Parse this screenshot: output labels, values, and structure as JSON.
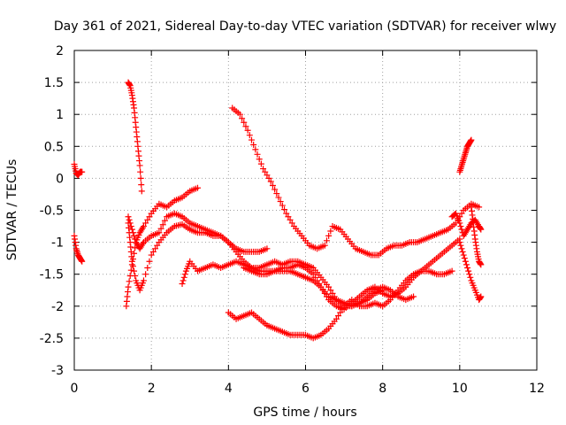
{
  "chart_data": {
    "type": "scatter",
    "title": "Day 361 of 2021, Sidereal Day-to-day VTEC variation (SDTVAR) for receiver wlwy",
    "xlabel": "GPS time / hours",
    "ylabel": "SDTVAR / TECUs",
    "xlim": [
      0,
      12
    ],
    "ylim": [
      -3,
      2
    ],
    "xticks": [
      0,
      2,
      4,
      6,
      8,
      10,
      12
    ],
    "xtick_labels": [
      "0",
      "2",
      "4",
      "6",
      "8",
      "10",
      "12"
    ],
    "yticks": [
      -3,
      -2.5,
      -2,
      -1.5,
      -1,
      -0.5,
      0,
      0.5,
      1,
      1.5,
      2
    ],
    "ytick_labels": [
      "-3",
      "-2.5",
      "-2",
      "-1.5",
      "-1",
      "-0.5",
      "0",
      "0.5",
      "1",
      "1.5",
      "2"
    ],
    "grid": true,
    "marker": "+",
    "color": "#ff0000",
    "series": [
      {
        "name": "s1",
        "x": [
          0.0,
          0.05,
          0.1,
          0.15,
          0.2
        ],
        "y": [
          0.22,
          0.08,
          0.05,
          0.1,
          0.1
        ]
      },
      {
        "name": "s2",
        "x": [
          0.0,
          0.05,
          0.1,
          0.15,
          0.2
        ],
        "y": [
          -0.9,
          -1.1,
          -1.2,
          -1.25,
          -1.3
        ]
      },
      {
        "name": "s3",
        "x": [
          1.4,
          1.45,
          1.5,
          1.55,
          1.6,
          1.65,
          1.7,
          1.75
        ],
        "y": [
          1.5,
          1.45,
          1.3,
          1.1,
          0.8,
          0.5,
          0.2,
          -0.2
        ]
      },
      {
        "name": "s4",
        "x": [
          1.35,
          1.4,
          1.5,
          1.6,
          1.7,
          1.8,
          2.0,
          2.2,
          2.4,
          2.6,
          2.8,
          3.0,
          3.2
        ],
        "y": [
          -2.0,
          -1.7,
          -1.35,
          -1.0,
          -0.85,
          -0.75,
          -0.55,
          -0.4,
          -0.45,
          -0.35,
          -0.3,
          -0.2,
          -0.15
        ]
      },
      {
        "name": "s5",
        "x": [
          1.4,
          1.45,
          1.5,
          1.6,
          1.7,
          1.8,
          2.0,
          2.2,
          2.4,
          2.6,
          2.8,
          3.0,
          3.2,
          3.4,
          3.6,
          3.8,
          4.0,
          4.2,
          4.4,
          4.6,
          4.8,
          5.0
        ],
        "y": [
          -0.7,
          -1.0,
          -1.3,
          -1.6,
          -1.75,
          -1.6,
          -1.2,
          -1.0,
          -0.85,
          -0.75,
          -0.72,
          -0.8,
          -0.85,
          -0.85,
          -0.9,
          -0.9,
          -1.0,
          -1.1,
          -1.15,
          -1.15,
          -1.15,
          -1.1
        ]
      },
      {
        "name": "s6",
        "x": [
          1.4,
          1.5,
          1.6,
          1.7,
          1.8,
          2.0,
          2.2,
          2.4,
          2.6,
          2.8,
          3.0,
          3.2,
          3.4,
          3.6,
          3.8,
          4.0,
          4.2,
          4.4,
          4.6,
          4.8,
          5.0,
          5.2,
          5.4,
          5.6,
          5.8,
          6.0,
          6.2,
          6.4,
          6.6,
          6.8,
          7.0,
          7.2,
          7.4,
          7.6,
          7.8,
          8.0
        ],
        "y": [
          -0.6,
          -0.8,
          -1.0,
          -1.1,
          -1.0,
          -0.9,
          -0.85,
          -0.6,
          -0.55,
          -0.6,
          -0.7,
          -0.75,
          -0.8,
          -0.85,
          -0.9,
          -1.0,
          -1.15,
          -1.3,
          -1.4,
          -1.45,
          -1.45,
          -1.45,
          -1.45,
          -1.45,
          -1.5,
          -1.55,
          -1.6,
          -1.7,
          -1.85,
          -1.9,
          -1.95,
          -2.0,
          -1.95,
          -1.9,
          -1.8,
          -1.75
        ]
      },
      {
        "name": "s7",
        "x": [
          2.8,
          2.9,
          3.0,
          3.2,
          3.4,
          3.6,
          3.8,
          4.0,
          4.2,
          4.4,
          4.6,
          4.8,
          5.0,
          5.2,
          5.4,
          5.6,
          5.8,
          6.0,
          6.2,
          6.4,
          6.6,
          6.8,
          7.0,
          7.2,
          7.4,
          7.6,
          7.8,
          8.0,
          8.2,
          8.4,
          8.6,
          8.8
        ],
        "y": [
          -1.65,
          -1.45,
          -1.3,
          -1.45,
          -1.4,
          -1.35,
          -1.4,
          -1.35,
          -1.3,
          -1.35,
          -1.4,
          -1.4,
          -1.35,
          -1.3,
          -1.35,
          -1.3,
          -1.3,
          -1.35,
          -1.4,
          -1.55,
          -1.7,
          -1.9,
          -2.0,
          -2.0,
          -1.95,
          -1.85,
          -1.75,
          -1.7,
          -1.75,
          -1.85,
          -1.9,
          -1.85
        ]
      },
      {
        "name": "s8",
        "x": [
          4.1,
          4.3,
          4.5,
          4.7,
          4.9,
          5.1,
          5.3,
          5.5,
          5.7,
          5.9,
          6.1,
          6.3,
          6.5,
          6.7,
          6.9,
          7.1,
          7.3,
          7.5,
          7.7,
          7.9,
          8.1,
          8.3,
          8.5,
          8.7,
          8.9,
          9.1,
          9.3,
          9.5,
          9.7,
          9.9,
          10.1,
          10.3,
          10.5
        ],
        "y": [
          1.1,
          1.0,
          0.75,
          0.45,
          0.15,
          -0.05,
          -0.3,
          -0.55,
          -0.75,
          -0.9,
          -1.05,
          -1.1,
          -1.05,
          -0.75,
          -0.8,
          -0.95,
          -1.1,
          -1.15,
          -1.2,
          -1.2,
          -1.1,
          -1.05,
          -1.05,
          -1.0,
          -1.0,
          -0.95,
          -0.9,
          -0.85,
          -0.8,
          -0.7,
          -0.5,
          -0.4,
          -0.45
        ]
      },
      {
        "name": "s9",
        "x": [
          4.0,
          4.2,
          4.4,
          4.6,
          4.8,
          5.0,
          5.2,
          5.4,
          5.6,
          5.8,
          6.0,
          6.2,
          6.4,
          6.6,
          6.8,
          7.0,
          7.2,
          7.4,
          7.6,
          7.8,
          8.0,
          8.2,
          8.4,
          8.6,
          8.8,
          9.0,
          9.2,
          9.4,
          9.6,
          9.8
        ],
        "y": [
          -2.1,
          -2.2,
          -2.15,
          -2.1,
          -2.2,
          -2.3,
          -2.35,
          -2.4,
          -2.45,
          -2.45,
          -2.45,
          -2.5,
          -2.45,
          -2.35,
          -2.2,
          -2.0,
          -1.9,
          -2.0,
          -2.0,
          -1.95,
          -2.0,
          -1.9,
          -1.75,
          -1.6,
          -1.5,
          -1.45,
          -1.45,
          -1.5,
          -1.5,
          -1.45
        ]
      },
      {
        "name": "s10",
        "x": [
          4.4,
          4.6,
          4.8,
          5.0,
          5.2,
          5.4,
          5.6,
          5.8,
          6.0,
          6.2,
          6.4,
          6.6,
          6.8,
          7.0,
          7.2,
          7.4,
          7.6,
          7.8,
          8.0,
          8.2,
          8.4,
          8.6,
          8.8,
          9.0,
          9.2,
          9.4,
          9.6,
          9.8,
          10.0
        ],
        "y": [
          -1.4,
          -1.45,
          -1.5,
          -1.5,
          -1.45,
          -1.4,
          -1.4,
          -1.35,
          -1.4,
          -1.5,
          -1.7,
          -1.9,
          -2.0,
          -2.05,
          -1.95,
          -1.85,
          -1.75,
          -1.7,
          -1.8,
          -1.85,
          -1.8,
          -1.7,
          -1.55,
          -1.45,
          -1.35,
          -1.25,
          -1.15,
          -1.05,
          -0.95
        ]
      },
      {
        "name": "s11",
        "x": [
          10.0,
          10.05,
          10.1,
          10.15,
          10.2,
          10.25,
          10.3
        ],
        "y": [
          0.1,
          0.2,
          0.3,
          0.4,
          0.5,
          0.55,
          0.6
        ]
      },
      {
        "name": "s12",
        "x": [
          9.8,
          9.9,
          10.0,
          10.1,
          10.2,
          10.3,
          10.4,
          10.5,
          10.55
        ],
        "y": [
          -0.6,
          -0.55,
          -0.7,
          -0.9,
          -0.8,
          -0.7,
          -0.65,
          -0.75,
          -0.8
        ]
      },
      {
        "name": "s13",
        "x": [
          10.0,
          10.1,
          10.2,
          10.3,
          10.4,
          10.5,
          10.55
        ],
        "y": [
          -1.0,
          -1.2,
          -1.4,
          -1.6,
          -1.75,
          -1.9,
          -1.85
        ]
      },
      {
        "name": "s14",
        "x": [
          10.3,
          10.35,
          10.4,
          10.45,
          10.5,
          10.55
        ],
        "y": [
          -0.45,
          -0.7,
          -0.95,
          -1.15,
          -1.3,
          -1.35
        ]
      }
    ]
  }
}
